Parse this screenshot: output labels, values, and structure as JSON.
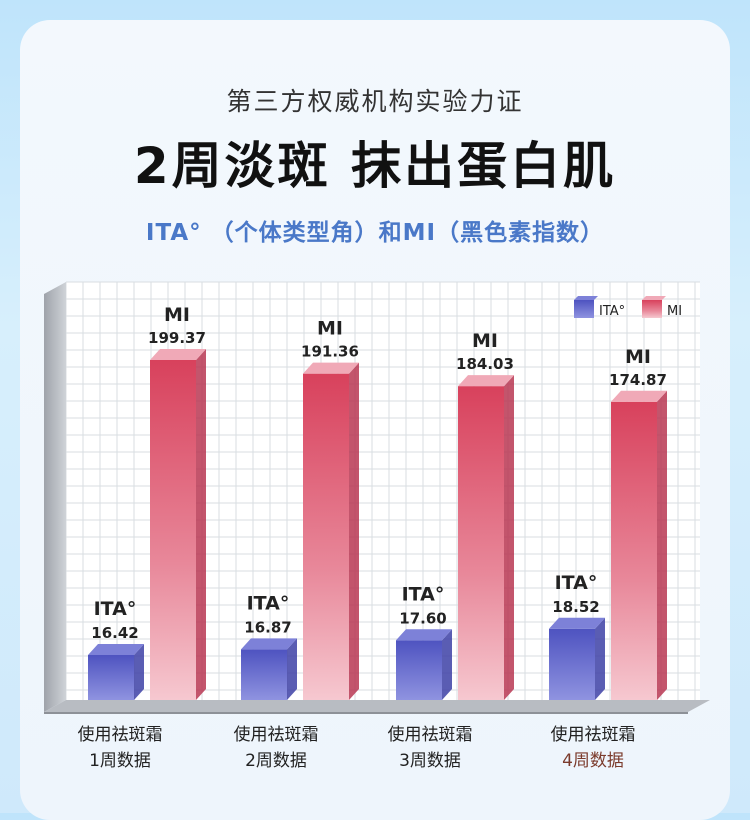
{
  "header": {
    "subtitle": "第三方权威机构实验力证",
    "title": "2周淡斑  抹出蛋白肌",
    "caption": "ITA°  （个体类型角）和MI（黑色素指数）"
  },
  "colors": {
    "ita": "#5a5ec8",
    "mi": "#d94864",
    "accent_caption": "#4a78c8"
  },
  "chart_data": {
    "type": "bar",
    "categories": [
      [
        "使用祛斑霜",
        "1周数据"
      ],
      [
        "使用祛斑霜",
        "2周数据"
      ],
      [
        "使用祛斑霜",
        "3周数据"
      ],
      [
        "使用祛斑霜",
        "4周数据"
      ]
    ],
    "series": [
      {
        "name": "ITA°",
        "label": "ITA°",
        "values": [
          16.42,
          16.87,
          17.6,
          18.52
        ],
        "value_text": [
          "16.42",
          "16.87",
          "17.60",
          "18.52"
        ]
      },
      {
        "name": "MI",
        "label": "MI",
        "values": [
          199.37,
          191.36,
          184.03,
          174.87
        ],
        "value_text": [
          "199.37",
          "191.36",
          "184.03",
          "174.87"
        ]
      }
    ],
    "legend": {
      "position": "top-right",
      "items": [
        "ITA°",
        "MI"
      ]
    },
    "grid": true
  }
}
